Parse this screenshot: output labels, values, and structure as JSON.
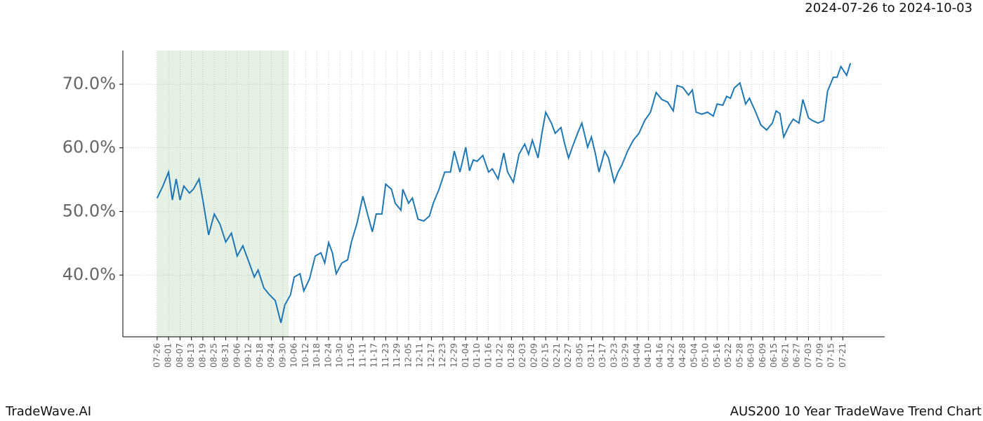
{
  "chart_data": {
    "type": "line",
    "title": "2024-07-26 to 2024-10-03",
    "brand": "TradeWave.AI",
    "chart_name": "AUS200 10 Year TradeWave Trend Chart",
    "color": "#1f77b4",
    "highlight": [
      0,
      69
    ],
    "highlight_color": "#d5e8d4",
    "grid": true,
    "xlim": [
      -18,
      382
    ],
    "ylim": [
      30.3,
      75.3
    ],
    "yticks": [
      {
        "value": 40,
        "label": "40.0%"
      },
      {
        "value": 50,
        "label": "50.0%"
      },
      {
        "value": 60,
        "label": "60.0%"
      },
      {
        "value": 70,
        "label": "70.0%"
      }
    ],
    "xticks": [
      {
        "value": 0,
        "label": "07-26"
      },
      {
        "value": 6,
        "label": "08-01"
      },
      {
        "value": 12,
        "label": "08-07"
      },
      {
        "value": 18,
        "label": "08-13"
      },
      {
        "value": 24,
        "label": "08-19"
      },
      {
        "value": 30,
        "label": "08-25"
      },
      {
        "value": 36,
        "label": "08-31"
      },
      {
        "value": 42,
        "label": "09-06"
      },
      {
        "value": 48,
        "label": "09-12"
      },
      {
        "value": 54,
        "label": "09-18"
      },
      {
        "value": 60,
        "label": "09-24"
      },
      {
        "value": 66,
        "label": "09-30"
      },
      {
        "value": 72,
        "label": "10-06"
      },
      {
        "value": 78,
        "label": "10-12"
      },
      {
        "value": 84,
        "label": "10-18"
      },
      {
        "value": 90,
        "label": "10-24"
      },
      {
        "value": 96,
        "label": "10-30"
      },
      {
        "value": 102,
        "label": "11-05"
      },
      {
        "value": 108,
        "label": "11-11"
      },
      {
        "value": 114,
        "label": "11-17"
      },
      {
        "value": 120,
        "label": "11-23"
      },
      {
        "value": 126,
        "label": "11-29"
      },
      {
        "value": 132,
        "label": "12-05"
      },
      {
        "value": 138,
        "label": "12-11"
      },
      {
        "value": 144,
        "label": "12-17"
      },
      {
        "value": 150,
        "label": "12-23"
      },
      {
        "value": 156,
        "label": "12-29"
      },
      {
        "value": 162,
        "label": "01-04"
      },
      {
        "value": 168,
        "label": "01-10"
      },
      {
        "value": 174,
        "label": "01-16"
      },
      {
        "value": 180,
        "label": "01-22"
      },
      {
        "value": 186,
        "label": "01-28"
      },
      {
        "value": 192,
        "label": "02-03"
      },
      {
        "value": 198,
        "label": "02-09"
      },
      {
        "value": 204,
        "label": "02-15"
      },
      {
        "value": 210,
        "label": "02-21"
      },
      {
        "value": 216,
        "label": "02-27"
      },
      {
        "value": 222,
        "label": "03-05"
      },
      {
        "value": 228,
        "label": "03-11"
      },
      {
        "value": 234,
        "label": "03-17"
      },
      {
        "value": 240,
        "label": "03-23"
      },
      {
        "value": 246,
        "label": "03-29"
      },
      {
        "value": 252,
        "label": "04-04"
      },
      {
        "value": 258,
        "label": "04-10"
      },
      {
        "value": 264,
        "label": "04-16"
      },
      {
        "value": 270,
        "label": "04-22"
      },
      {
        "value": 276,
        "label": "04-28"
      },
      {
        "value": 282,
        "label": "05-04"
      },
      {
        "value": 288,
        "label": "05-10"
      },
      {
        "value": 294,
        "label": "05-16"
      },
      {
        "value": 300,
        "label": "05-22"
      },
      {
        "value": 306,
        "label": "05-28"
      },
      {
        "value": 312,
        "label": "06-03"
      },
      {
        "value": 318,
        "label": "06-09"
      },
      {
        "value": 324,
        "label": "06-15"
      },
      {
        "value": 330,
        "label": "06-21"
      },
      {
        "value": 336,
        "label": "06-27"
      },
      {
        "value": 342,
        "label": "07-03"
      },
      {
        "value": 348,
        "label": "07-09"
      },
      {
        "value": 354,
        "label": "07-15"
      },
      {
        "value": 360,
        "label": "07-21"
      }
    ],
    "x": [
      0,
      3,
      6,
      8,
      10,
      12,
      14,
      17,
      19,
      22,
      24,
      27,
      30,
      33,
      36,
      39,
      42,
      45,
      48,
      51,
      53,
      56,
      59,
      62,
      65,
      67,
      70,
      72,
      75,
      77,
      80,
      83,
      86,
      88,
      90,
      92,
      94,
      97,
      100,
      102,
      105,
      108,
      111,
      113,
      115,
      118,
      120,
      123,
      125,
      128,
      129,
      132,
      134,
      137,
      140,
      143,
      145,
      148,
      151,
      154,
      156,
      159,
      162,
      164,
      166,
      168,
      171,
      174,
      176,
      179,
      182,
      184,
      187,
      190,
      193,
      195,
      197,
      200,
      202,
      204,
      207,
      209,
      212,
      214,
      216,
      218,
      221,
      223,
      226,
      228,
      230,
      232,
      235,
      237,
      240,
      242,
      244,
      247,
      250,
      253,
      256,
      259,
      262,
      265,
      268,
      271,
      273,
      276,
      279,
      281,
      283,
      286,
      289,
      292,
      294,
      297,
      299,
      301,
      303,
      306,
      309,
      311,
      314,
      317,
      320,
      323,
      325,
      327,
      329,
      332,
      334,
      337,
      339,
      342,
      344,
      347,
      350,
      352,
      355,
      357,
      359,
      362,
      364
    ],
    "values": [
      52.1,
      54.0,
      56.2,
      51.8,
      55.1,
      51.8,
      54.0,
      52.9,
      53.5,
      55.1,
      51.8,
      46.3,
      49.6,
      48.0,
      45.2,
      46.6,
      43.0,
      44.6,
      42.2,
      39.7,
      40.8,
      38.0,
      36.9,
      36.0,
      32.5,
      35.3,
      36.9,
      39.7,
      40.2,
      37.5,
      39.4,
      43.0,
      43.5,
      41.9,
      45.1,
      43.5,
      40.2,
      41.9,
      42.4,
      45.2,
      48.2,
      52.4,
      49.0,
      46.8,
      49.6,
      49.6,
      54.3,
      53.5,
      51.3,
      50.2,
      53.5,
      51.3,
      52.1,
      48.8,
      48.5,
      49.3,
      51.3,
      53.5,
      56.2,
      56.2,
      59.5,
      56.2,
      60.1,
      56.4,
      58.1,
      57.9,
      58.8,
      56.2,
      56.7,
      55.1,
      59.2,
      56.2,
      54.6,
      59.0,
      60.6,
      59.0,
      61.2,
      58.4,
      62.3,
      65.6,
      63.9,
      62.3,
      63.2,
      60.6,
      58.4,
      60.1,
      62.5,
      63.9,
      60.1,
      61.7,
      59.2,
      56.2,
      59.5,
      58.4,
      54.6,
      56.2,
      57.3,
      59.5,
      61.2,
      62.3,
      64.3,
      65.6,
      68.7,
      67.6,
      67.2,
      65.8,
      69.8,
      69.5,
      68.3,
      69.1,
      65.6,
      65.3,
      65.6,
      65.0,
      66.9,
      66.7,
      68.1,
      67.8,
      69.4,
      70.2,
      66.9,
      67.8,
      65.8,
      63.6,
      62.8,
      63.9,
      65.8,
      65.4,
      61.7,
      63.6,
      64.5,
      63.9,
      67.6,
      64.7,
      64.3,
      63.9,
      64.3,
      68.9,
      71.1,
      71.1,
      72.8,
      71.4,
      73.3
    ]
  }
}
